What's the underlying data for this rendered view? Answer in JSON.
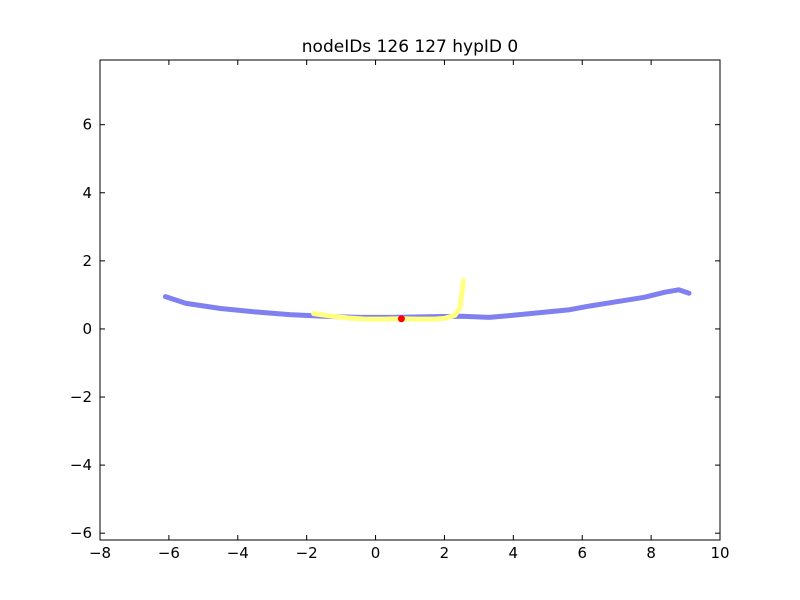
{
  "chart_data": {
    "type": "line",
    "title": "nodeIDs 126 127 hypID 0",
    "xlabel": "",
    "ylabel": "",
    "xlim": [
      -8,
      10
    ],
    "ylim": [
      -6.2,
      7.9
    ],
    "xticks": [
      -8,
      -6,
      -4,
      -2,
      0,
      2,
      4,
      6,
      8,
      10
    ],
    "xtick_labels": [
      "−8",
      "−6",
      "−4",
      "−2",
      "0",
      "2",
      "4",
      "6",
      "8",
      "10"
    ],
    "yticks": [
      -6,
      -4,
      -2,
      0,
      2,
      4,
      6
    ],
    "ytick_labels": [
      "−6",
      "−4",
      "−2",
      "0",
      "2",
      "4",
      "6"
    ],
    "grid": false,
    "series": [
      {
        "color": "#8080f0",
        "line_width": 5,
        "x": [
          -6.1,
          -5.5,
          -4.5,
          -3.5,
          -2.5,
          -1.5,
          -0.5,
          0.5,
          1.5,
          2.5,
          3.3,
          4.0,
          5.0,
          5.6,
          6.2,
          7.0,
          7.8,
          8.4,
          8.8,
          9.1
        ],
        "y": [
          0.95,
          0.75,
          0.6,
          0.5,
          0.42,
          0.37,
          0.34,
          0.34,
          0.36,
          0.37,
          0.34,
          0.4,
          0.5,
          0.56,
          0.67,
          0.8,
          0.93,
          1.08,
          1.15,
          1.05
        ]
      },
      {
        "color": "#ffff80",
        "line_width": 5,
        "x": [
          -1.8,
          -1.3,
          -0.8,
          -0.3,
          0.2,
          0.7,
          1.2,
          1.7,
          2.0,
          2.3,
          2.45,
          2.5,
          2.55
        ],
        "y": [
          0.45,
          0.38,
          0.32,
          0.29,
          0.29,
          0.3,
          0.29,
          0.29,
          0.31,
          0.4,
          0.62,
          1.0,
          1.42
        ]
      }
    ],
    "points": [
      {
        "x": 0.75,
        "y": 0.3,
        "color": "#ff0000"
      }
    ]
  }
}
